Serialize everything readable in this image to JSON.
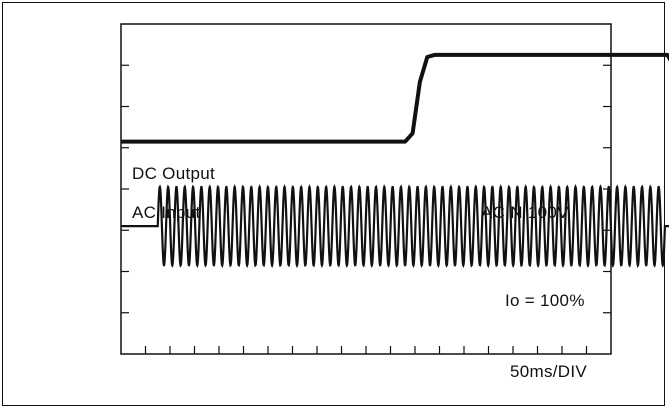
{
  "chart_data": {
    "type": "line",
    "title": "",
    "time_scale_label": "50ms/DIV",
    "grid": false,
    "x_divisions": 10,
    "y_divisions": 8,
    "x_unit": "div",
    "y_unit": "div",
    "series": [
      {
        "name": "DC Output",
        "color": "#111111",
        "points": [
          [
            0,
            5.15
          ],
          [
            5.8,
            5.15
          ],
          [
            5.95,
            5.35
          ],
          [
            6.1,
            6.6
          ],
          [
            6.25,
            7.2
          ],
          [
            6.4,
            7.25
          ],
          [
            11.15,
            7.25
          ],
          [
            11.3,
            6.95
          ],
          [
            11.5,
            5.3
          ],
          [
            11.6,
            5.15
          ],
          [
            12.8,
            5.15
          ]
        ]
      },
      {
        "name": "AC Input",
        "color": "#111111",
        "baseline": 3.1,
        "amplitude": 0.95,
        "burst_start": 0.75,
        "burst_end": 11.1,
        "cycles": 61
      }
    ],
    "annotations": [
      "ACIN 100V",
      "Io = 100%"
    ]
  }
}
